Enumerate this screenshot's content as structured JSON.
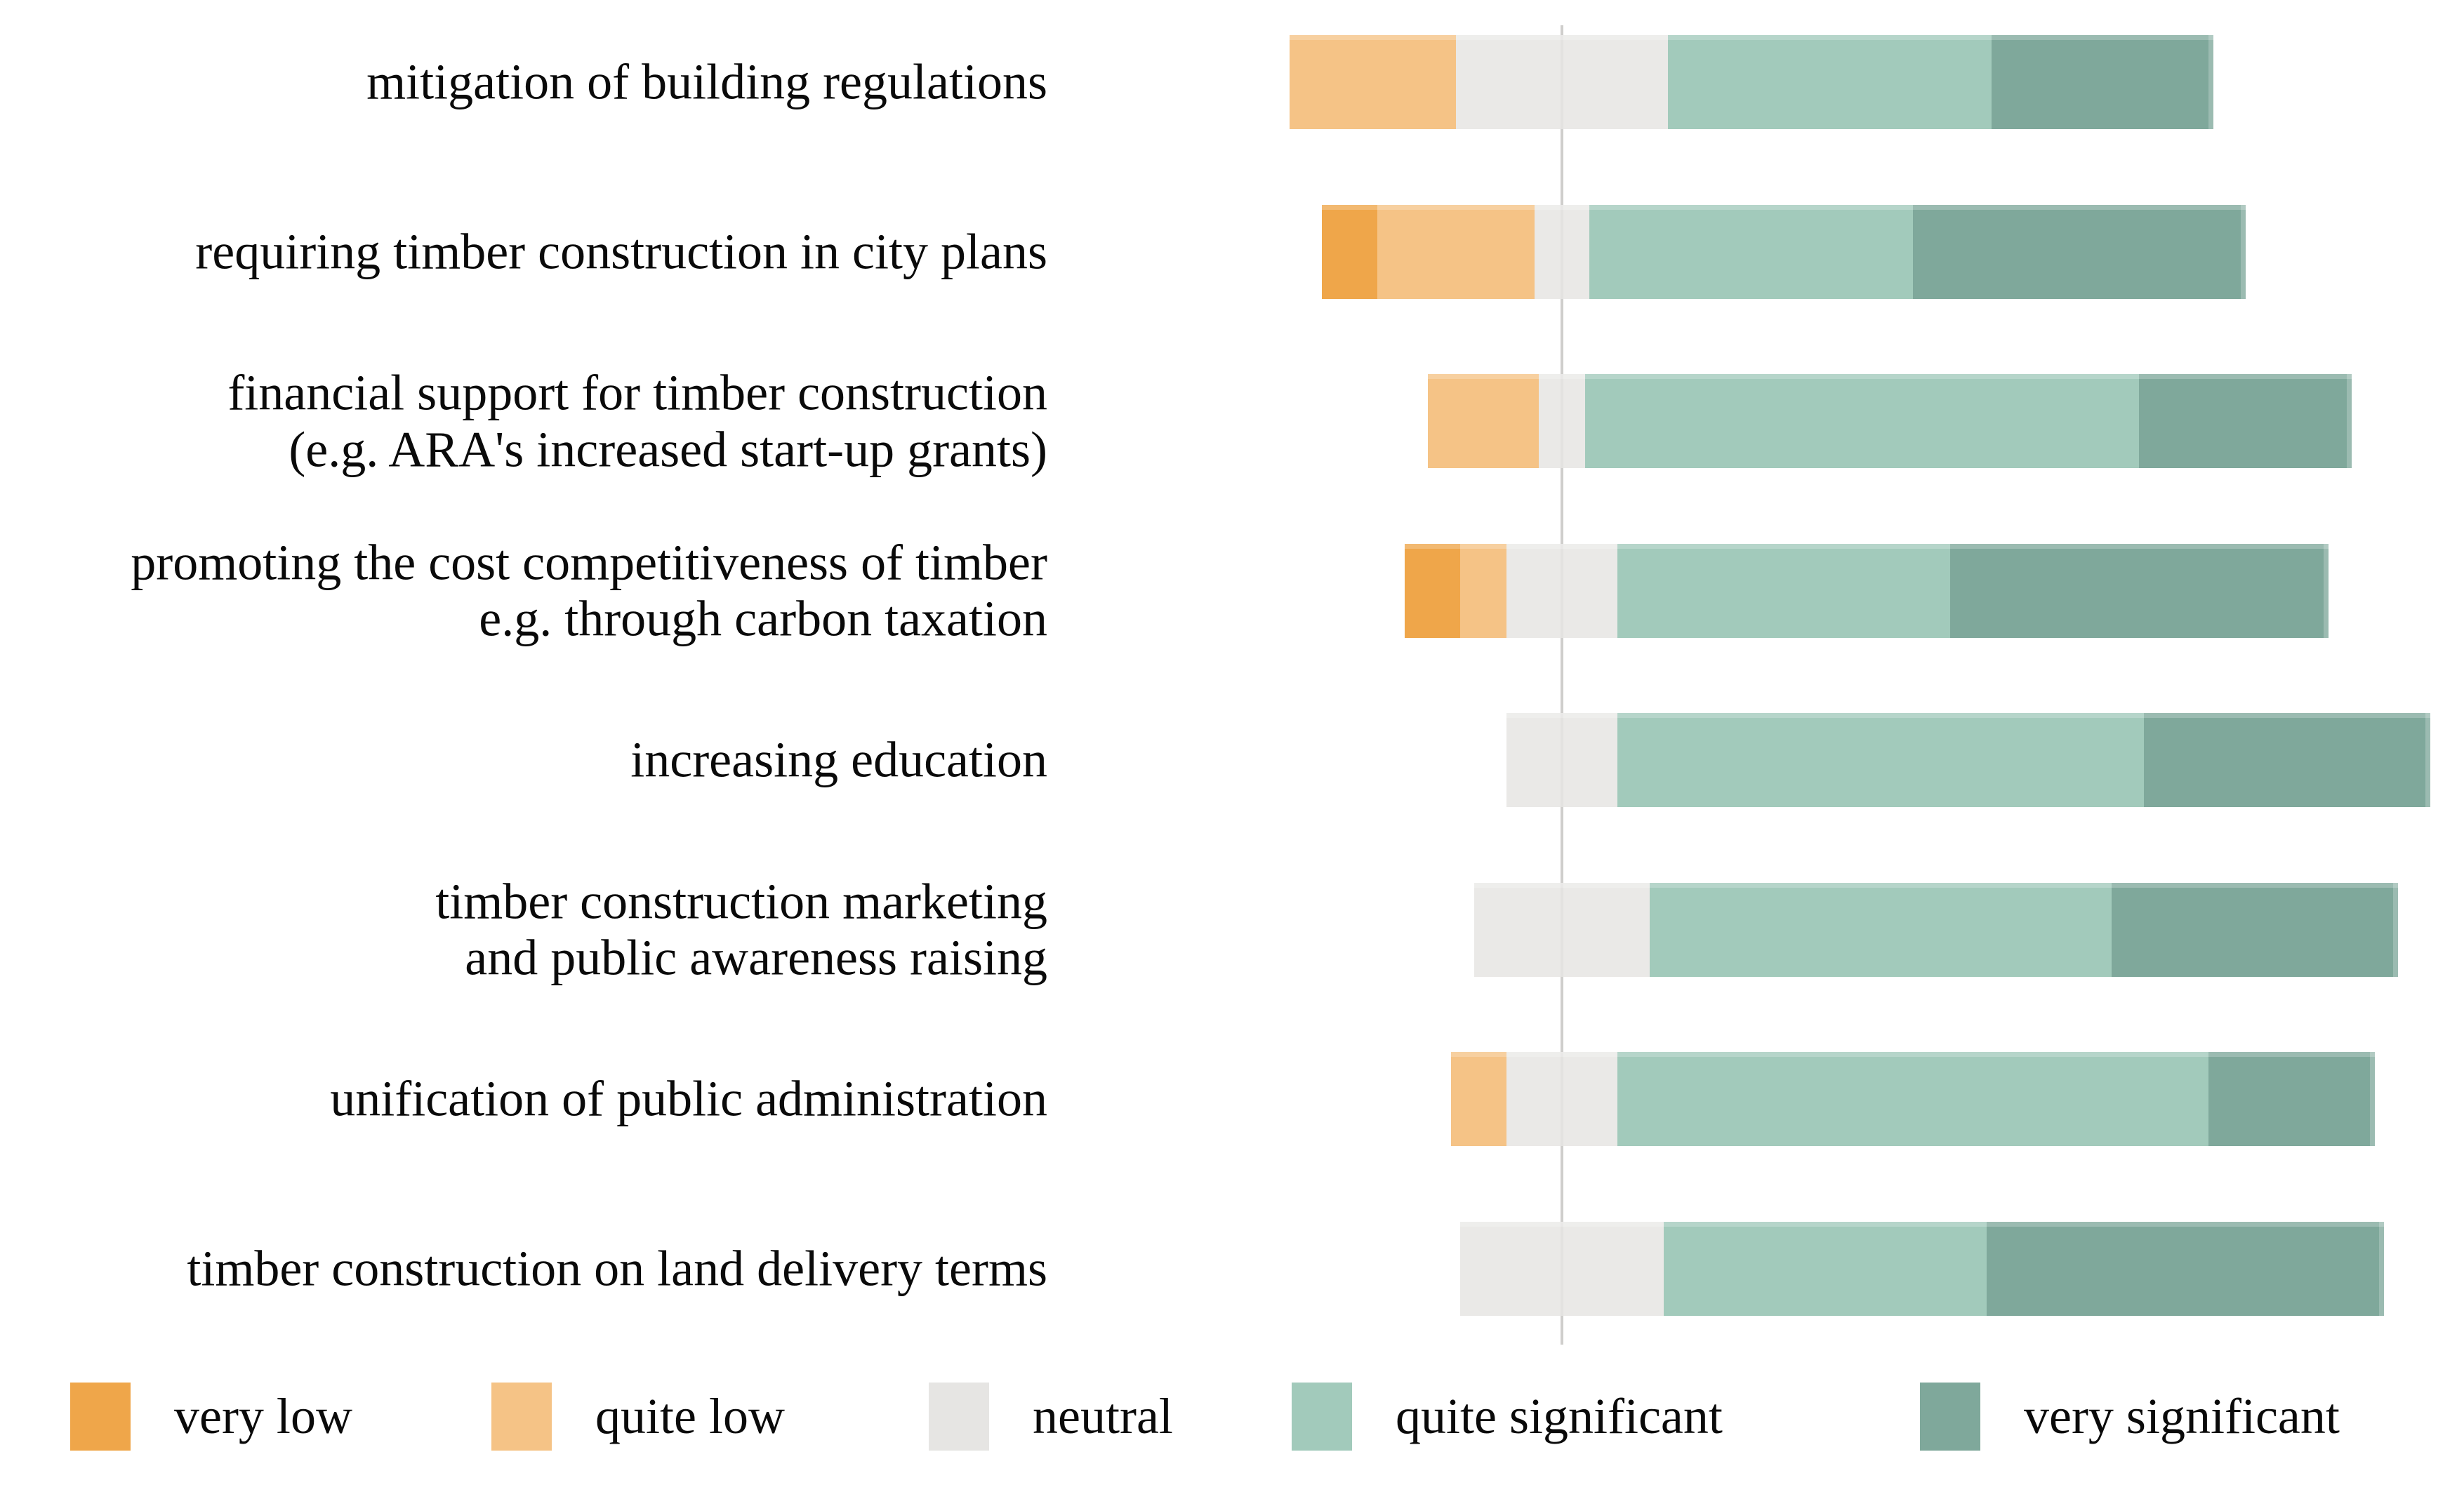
{
  "chart_data": {
    "type": "bar",
    "subtype": "horizontal-diverging-stacked",
    "title": "",
    "unit": "percent",
    "values_estimated_from_pixels": true,
    "background_color": "#ffffff",
    "zero_gridline": true,
    "gridline_color": "#cfcecc",
    "categories": [
      "mitigation of building regulations",
      "requiring timber construction in city plans",
      "financial support for timber construction\n(e.g. ARA's increased start-up grants)",
      "promoting the cost competitiveness of timber\ne.g. through carbon taxation",
      "increasing education",
      "timber construction marketing\nand public awareness raising",
      "unification of public administration",
      "timber construction on land delivery terms"
    ],
    "series": [
      {
        "name": "very low",
        "color": "#efa64a",
        "values": [
          0,
          6,
          0,
          6,
          0,
          0,
          0,
          0
        ]
      },
      {
        "name": "quite low",
        "color": "#f5c386",
        "values": [
          18,
          17,
          12,
          5,
          0,
          0,
          6,
          0
        ]
      },
      {
        "name": "neutral",
        "color": "#e6e5e3",
        "values": [
          23,
          6,
          5,
          12,
          12,
          19,
          12,
          22
        ]
      },
      {
        "name": "quite significant",
        "color": "#a2cabb",
        "values": [
          35,
          35,
          60,
          36,
          57,
          50,
          64,
          35
        ]
      },
      {
        "name": "very significant",
        "color": "#7fa89b",
        "values": [
          24,
          36,
          23,
          41,
          31,
          31,
          18,
          43
        ]
      }
    ],
    "legend": {
      "position": "bottom",
      "items": [
        "very low",
        "quite low",
        "neutral",
        "quite significant",
        "very significant"
      ]
    },
    "layout_note": "neutral category straddles the zero line; each row sums to 100%"
  }
}
